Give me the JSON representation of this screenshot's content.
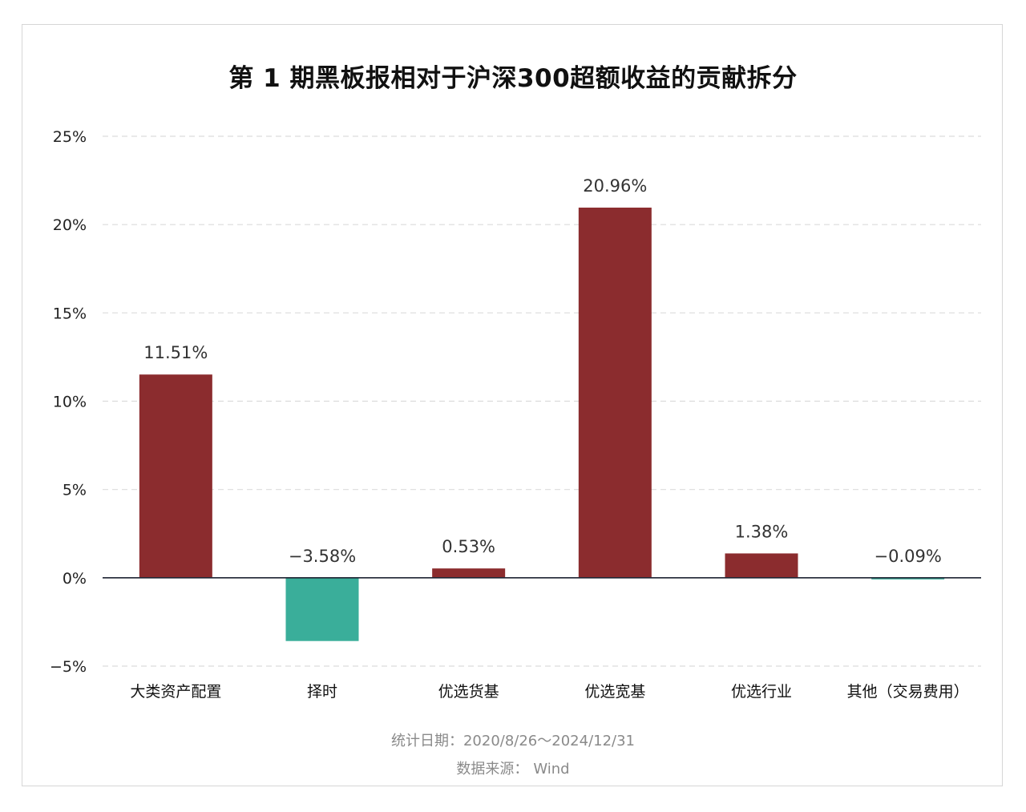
{
  "chart_data": {
    "type": "bar",
    "title": "第 1 期黑板报相对于沪深300超额收益的贡献拆分",
    "categories": [
      "大类资产配置",
      "择时",
      "优选货基",
      "优选宽基",
      "优选行业",
      "其他（交易费用）"
    ],
    "values": [
      11.51,
      -3.58,
      0.53,
      20.96,
      1.38,
      -0.09
    ],
    "value_labels": [
      "11.51%",
      "−3.58%",
      "0.53%",
      "20.96%",
      "1.38%",
      "−0.09%"
    ],
    "yticks": [
      25,
      20,
      15,
      10,
      5,
      0,
      -5
    ],
    "ytick_labels": [
      "25%",
      "20%",
      "15%",
      "10%",
      "5%",
      "0%",
      "−5%"
    ],
    "ylim": [
      -5,
      25
    ],
    "xlabel": "",
    "ylabel": "",
    "grid": "horizontal dashed",
    "colors": {
      "positive": "#8b2c2e",
      "negative": "#3aae9a",
      "zero_line": "#1f2433",
      "grid": "#dcdcdc"
    }
  },
  "footer": {
    "date_label": "统计日期：",
    "date_range": "2020/8/26～2024/12/31",
    "source_label": "数据来源：",
    "source_value": "Wind"
  }
}
